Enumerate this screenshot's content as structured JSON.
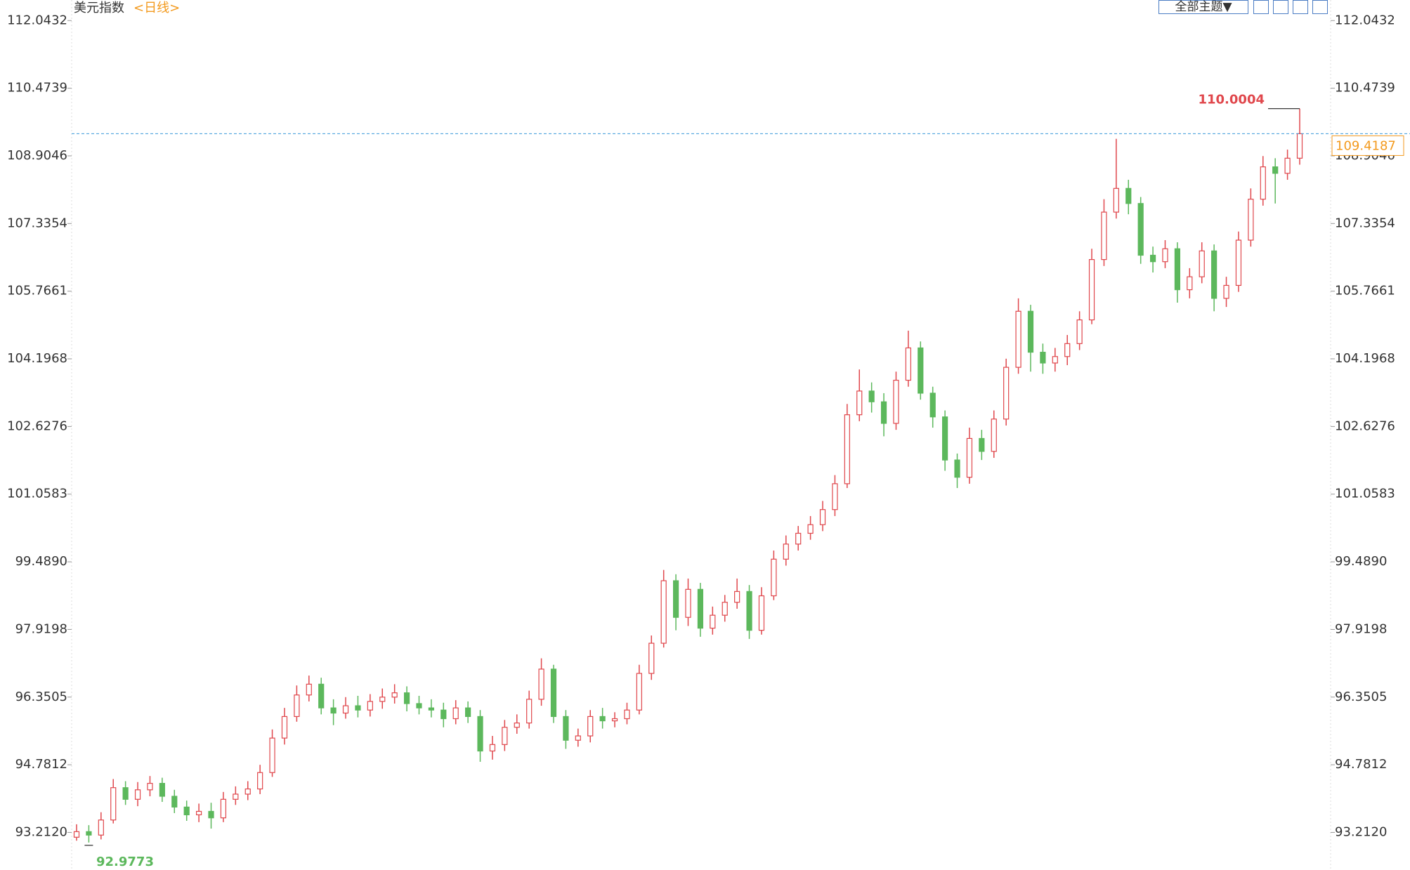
{
  "chart_data": {
    "type": "candlestick",
    "title": "美元指数",
    "period": "<日线>",
    "up_color": "#e0474c",
    "down_color": "#5cb85c",
    "open": [
      93.1,
      93.23,
      93.15,
      93.5,
      94.25,
      93.98,
      94.2,
      94.35,
      94.05,
      93.8,
      93.62,
      93.7,
      93.55,
      93.98,
      94.1,
      94.22,
      94.6,
      95.4,
      95.9,
      96.4,
      96.65,
      96.1,
      95.98,
      96.15,
      96.05,
      96.25,
      96.35,
      96.45,
      96.2,
      96.1,
      96.05,
      95.85,
      96.1,
      95.9,
      95.1,
      95.25,
      95.65,
      95.75,
      96.3,
      97.0,
      95.9,
      95.35,
      95.45,
      95.9,
      95.8,
      95.85,
      96.05,
      96.9,
      97.6,
      99.05,
      98.2,
      98.85,
      97.95,
      98.25,
      98.55,
      98.8,
      97.9,
      98.7,
      99.55,
      99.9,
      100.15,
      100.35,
      100.7,
      101.3,
      102.9,
      103.45,
      103.2,
      102.7,
      103.7,
      104.45,
      103.4,
      102.85,
      101.85,
      101.45,
      102.35,
      102.05,
      102.8,
      104.0,
      105.3,
      104.35,
      104.1,
      104.25,
      104.55,
      105.1,
      106.5,
      107.6,
      108.15,
      107.8,
      106.6,
      106.45,
      106.75,
      105.8,
      106.1,
      106.7,
      105.6,
      105.9,
      106.95,
      107.9,
      108.65,
      108.5,
      108.85
    ],
    "high": [
      93.4,
      93.38,
      93.68,
      94.45,
      94.4,
      94.38,
      94.52,
      94.48,
      94.2,
      93.95,
      93.88,
      93.9,
      94.15,
      94.28,
      94.4,
      94.78,
      95.6,
      96.1,
      96.62,
      96.85,
      96.8,
      96.3,
      96.35,
      96.38,
      96.42,
      96.55,
      96.65,
      96.6,
      96.38,
      96.3,
      96.22,
      96.28,
      96.25,
      96.05,
      95.45,
      95.82,
      95.95,
      96.5,
      97.25,
      97.1,
      96.05,
      95.62,
      96.05,
      96.1,
      96.0,
      96.22,
      97.1,
      97.78,
      99.3,
      99.2,
      99.1,
      99.0,
      98.45,
      98.72,
      99.1,
      98.95,
      98.9,
      99.75,
      100.1,
      100.32,
      100.55,
      100.9,
      101.5,
      103.15,
      103.95,
      103.65,
      103.4,
      103.9,
      104.85,
      104.6,
      103.55,
      103.0,
      102.0,
      102.6,
      102.55,
      103.0,
      104.2,
      105.6,
      105.45,
      104.55,
      104.45,
      104.75,
      105.3,
      106.75,
      107.9,
      109.3,
      108.35,
      107.95,
      106.8,
      106.95,
      106.9,
      106.3,
      106.9,
      106.85,
      106.1,
      107.15,
      108.15,
      108.9,
      108.85,
      109.05,
      110.0004
    ],
    "low": [
      93.02,
      92.9773,
      93.05,
      93.42,
      93.85,
      93.82,
      94.05,
      93.92,
      93.66,
      93.48,
      93.45,
      93.3,
      93.45,
      93.85,
      93.96,
      94.1,
      94.5,
      95.25,
      95.78,
      96.25,
      95.95,
      95.7,
      95.85,
      95.88,
      95.9,
      96.08,
      96.2,
      96.02,
      95.95,
      95.88,
      95.65,
      95.72,
      95.75,
      94.85,
      94.9,
      95.1,
      95.5,
      95.62,
      96.15,
      95.75,
      95.15,
      95.2,
      95.3,
      95.62,
      95.65,
      95.72,
      95.95,
      96.75,
      97.5,
      97.9,
      98.0,
      97.75,
      97.8,
      98.1,
      98.4,
      97.7,
      97.8,
      98.6,
      99.4,
      99.75,
      100.0,
      100.2,
      100.55,
      101.2,
      102.75,
      102.95,
      102.4,
      102.55,
      103.55,
      103.25,
      102.6,
      101.6,
      101.2,
      101.3,
      101.85,
      101.9,
      102.65,
      103.85,
      103.9,
      103.85,
      103.9,
      104.05,
      104.4,
      105.0,
      106.35,
      107.45,
      107.55,
      106.4,
      106.2,
      106.3,
      105.5,
      105.6,
      105.95,
      105.3,
      105.4,
      105.75,
      106.8,
      107.75,
      107.8,
      108.35,
      108.7
    ],
    "close": [
      93.23,
      93.15,
      93.5,
      94.25,
      93.98,
      94.2,
      94.35,
      94.05,
      93.8,
      93.62,
      93.7,
      93.55,
      93.98,
      94.1,
      94.22,
      94.6,
      95.4,
      95.9,
      96.4,
      96.65,
      96.1,
      95.98,
      96.15,
      96.05,
      96.25,
      96.35,
      96.45,
      96.2,
      96.1,
      96.05,
      95.85,
      96.1,
      95.9,
      95.1,
      95.25,
      95.65,
      95.75,
      96.3,
      97.0,
      95.9,
      95.35,
      95.45,
      95.9,
      95.8,
      95.85,
      96.05,
      96.9,
      97.6,
      99.05,
      98.2,
      98.85,
      97.95,
      98.25,
      98.55,
      98.8,
      97.9,
      98.7,
      99.55,
      99.9,
      100.15,
      100.35,
      100.7,
      101.3,
      102.9,
      103.45,
      103.2,
      102.7,
      103.7,
      104.45,
      103.4,
      102.85,
      101.85,
      101.45,
      102.35,
      102.05,
      102.8,
      104.0,
      105.3,
      104.35,
      104.1,
      104.25,
      104.55,
      105.1,
      106.5,
      107.6,
      108.15,
      107.8,
      106.6,
      106.45,
      106.75,
      105.8,
      106.1,
      106.7,
      105.6,
      105.9,
      106.95,
      107.9,
      108.65,
      108.5,
      108.85,
      109.4187
    ],
    "ylim": [
      92.34,
      112.52
    ],
    "yticks": [
      112.0432,
      110.4739,
      108.9046,
      107.3354,
      105.7661,
      104.1968,
      102.6276,
      101.0583,
      {
        "value": 99.489,
        "label": "99.4890"
      },
      97.9198,
      96.3505,
      94.7812,
      {
        "value": 93.212,
        "label": "93.2120"
      }
    ]
  },
  "toolbar": {
    "theme_button": "全部主题▼"
  }
}
